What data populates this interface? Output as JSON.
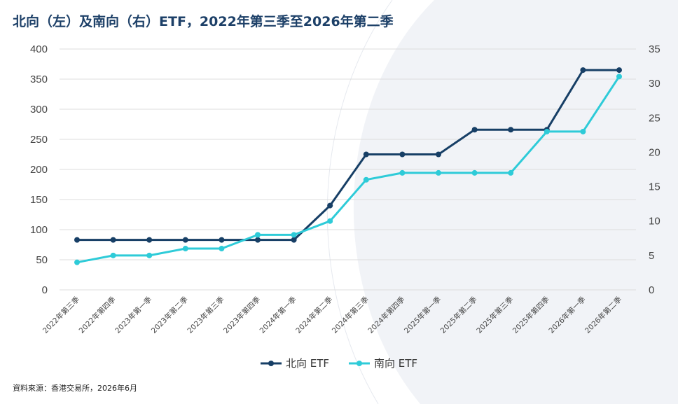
{
  "title": "北向（左）及南向（右）ETF，2022年第三季至2026年第二季",
  "source": "資料來源：香港交易所，2026年6月",
  "colors": {
    "north": "#173f66",
    "south": "#2ecbd8",
    "grid": "#dddddd",
    "axis_text": "#444444",
    "title": "#1d4068"
  },
  "chart_data": {
    "type": "line",
    "categories": [
      "2022年第三季",
      "2022年第四季",
      "2023年第一季",
      "2023年第二季",
      "2023年第三季",
      "2023年第四季",
      "2024年第一季",
      "2024年第二季",
      "2024年第三季",
      "2024年第四季",
      "2025年第一季",
      "2025年第二季",
      "2025年第三季",
      "2025年第四季",
      "2026年第一季",
      "2026年第二季"
    ],
    "series": [
      {
        "name": "北向 ETF",
        "axis": "left",
        "values": [
          83,
          83,
          83,
          83,
          83,
          83,
          83,
          140,
          225,
          225,
          225,
          266,
          266,
          266,
          365,
          365
        ]
      },
      {
        "name": "南向 ETF",
        "axis": "right",
        "values": [
          4,
          5,
          5,
          6,
          6,
          8,
          8,
          10,
          16,
          17,
          17,
          17,
          17,
          23,
          23,
          31
        ]
      }
    ],
    "y_left": {
      "min": 0,
      "max": 400,
      "ticks": [
        0,
        50,
        100,
        150,
        200,
        250,
        300,
        350,
        400
      ]
    },
    "y_right": {
      "min": 0,
      "max": 35,
      "ticks": [
        0,
        5,
        10,
        15,
        20,
        25,
        30,
        35
      ]
    },
    "grid": true,
    "legend_position": "bottom-center"
  }
}
